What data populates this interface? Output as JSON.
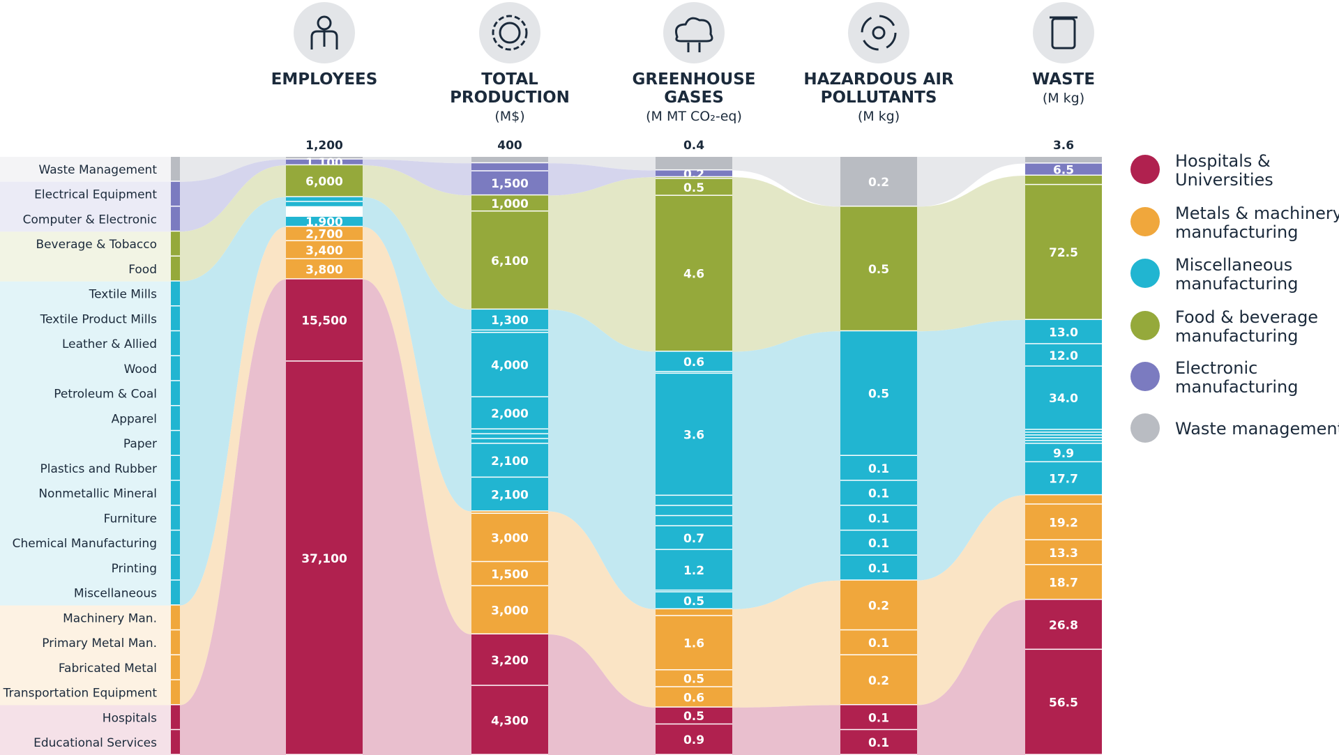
{
  "chart_data": {
    "type": "alluvial-stacked-bar",
    "categories": [
      {
        "name": "Waste Management",
        "group": "waste"
      },
      {
        "name": "Electrical Equipment",
        "group": "electronic"
      },
      {
        "name": "Computer & Electronic",
        "group": "electronic"
      },
      {
        "name": "Beverage & Tobacco",
        "group": "food"
      },
      {
        "name": "Food",
        "group": "food"
      },
      {
        "name": "Textile Mills",
        "group": "misc"
      },
      {
        "name": "Textile Product Mills",
        "group": "misc"
      },
      {
        "name": "Leather & Allied",
        "group": "misc"
      },
      {
        "name": "Wood",
        "group": "misc"
      },
      {
        "name": "Petroleum & Coal",
        "group": "misc"
      },
      {
        "name": "Apparel",
        "group": "misc"
      },
      {
        "name": "Paper",
        "group": "misc"
      },
      {
        "name": "Plastics and Rubber",
        "group": "misc"
      },
      {
        "name": "Nonmetallic Mineral",
        "group": "misc"
      },
      {
        "name": "Furniture",
        "group": "misc"
      },
      {
        "name": "Chemical Manufacturing",
        "group": "misc"
      },
      {
        "name": "Printing",
        "group": "misc"
      },
      {
        "name": "Miscellaneous",
        "group": "misc"
      },
      {
        "name": "Machinery Man.",
        "group": "metals"
      },
      {
        "name": "Primary Metal Man.",
        "group": "metals"
      },
      {
        "name": "Fabricated Metal",
        "group": "metals"
      },
      {
        "name": "Transportation Equipment",
        "group": "metals"
      },
      {
        "name": "Hospitals",
        "group": "hospitals"
      },
      {
        "name": "Educational Services",
        "group": "hospitals"
      }
    ],
    "groups": [
      {
        "key": "hospitals",
        "label": "Hospitals & Universities",
        "lines": [
          "Hospitals &",
          "Universities"
        ],
        "color": "#b0214f",
        "light": "#e8bccb"
      },
      {
        "key": "metals",
        "label": "Metals & machinery manufacturing",
        "lines": [
          "Metals & machinery",
          "manufacturing"
        ],
        "color": "#f0a73c",
        "light": "#fae3c2"
      },
      {
        "key": "misc",
        "label": "Miscellaneous manufacturing",
        "lines": [
          "Miscellaneous",
          "manufacturing"
        ],
        "color": "#21b5d1",
        "light": "#bfe7f0"
      },
      {
        "key": "food",
        "label": "Food & beverage manufacturing",
        "lines": [
          "Food & beverage",
          "manufacturing"
        ],
        "color": "#95a93b",
        "light": "#e2e6c3"
      },
      {
        "key": "electronic",
        "label": "Electronic manufacturing",
        "lines": [
          "Electronic",
          "manufacturing"
        ],
        "color": "#7b7bc0",
        "light": "#d3d3ec"
      },
      {
        "key": "waste",
        "label": "Waste management",
        "lines": [
          "Waste management"
        ],
        "color": "#b9bcc2",
        "light": "#e6e7ea"
      }
    ],
    "columns": [
      {
        "key": "employees",
        "title": [
          "EMPLOYEES"
        ],
        "unit": "",
        "total_label": "1,200",
        "icon": "person-icon",
        "values": [
          500,
          1100,
          6000,
          900,
          1000,
          150,
          150,
          150,
          150,
          150,
          150,
          150,
          150,
          150,
          150,
          150,
          150,
          1900,
          2700,
          3400,
          3800,
          15500,
          37100,
          37100
        ],
        "labels": [
          "",
          "1,100",
          "6,000",
          "",
          "",
          "",
          "",
          "",
          "",
          "",
          "",
          "",
          "",
          "",
          "",
          "",
          "",
          "1,900",
          "2,700",
          "3,400",
          "3,800",
          "15,500",
          "37,100",
          ""
        ],
        "merge_last_two": true
      },
      {
        "key": "production",
        "title": [
          "TOTAL",
          "PRODUCTION"
        ],
        "unit": "(M$)",
        "total_label": "400",
        "icon": "gear-icon",
        "values": [
          400,
          500,
          1500,
          1000,
          6100,
          1300,
          150,
          4000,
          2000,
          300,
          300,
          300,
          2100,
          2100,
          150,
          3000,
          1500,
          3000,
          3200,
          4300
        ],
        "labels": [
          "",
          "",
          "1,500",
          "1,000",
          "6,100",
          "1,300",
          "",
          "4,000",
          "2,000",
          "",
          "",
          "",
          "2,100",
          "2,100",
          "",
          "3,000",
          "1,500",
          "3,000",
          "3,200",
          "4,300"
        ]
      },
      {
        "key": "ghg",
        "title": [
          "GREENHOUSE",
          "GASES"
        ],
        "unit": "(M MT CO₂-eq)",
        "total_label": "0.4",
        "icon": "co2-cloud-icon",
        "values": [
          0.4,
          0.2,
          0.05,
          0.5,
          4.6,
          0.6,
          0.05,
          3.6,
          0.3,
          0.3,
          0.3,
          0.7,
          1.2,
          0.05,
          0.5,
          0.2,
          1.6,
          0.5,
          0.6,
          0.5,
          0.9
        ],
        "labels": [
          "",
          "0.2",
          "",
          "0.5",
          "4.6",
          "0.6",
          "",
          "3.6",
          "",
          "",
          "",
          "0.7",
          "1.2",
          "",
          "0.5",
          "",
          "1.6",
          "0.5",
          "0.6",
          "0.5",
          "0.9"
        ]
      },
      {
        "key": "hap",
        "title": [
          "HAZARDOUS AIR",
          "POLLUTANTS"
        ],
        "unit": "(M kg)",
        "total_label": "",
        "icon": "hazard-icon",
        "values": [
          0.2,
          0.5,
          0.5,
          0.1,
          0.1,
          0.1,
          0.1,
          0.1,
          0.2,
          0.1,
          0.2,
          0.1,
          0.1
        ],
        "labels": [
          "0.2",
          "0.5",
          "0.5",
          "0.1",
          "0.1",
          "0.1",
          "0.1",
          "0.1",
          "0.2",
          "0.1",
          "0.2",
          "0.1",
          "0.1"
        ]
      },
      {
        "key": "waste",
        "title": [
          "WASTE"
        ],
        "unit": "(M kg)",
        "total_label": "3.6",
        "icon": "trash-bin-icon",
        "values": [
          3.6,
          6.5,
          5,
          72.5,
          13.0,
          12.0,
          34.0,
          1.5,
          1.5,
          1.5,
          1.5,
          1.5,
          9.9,
          17.7,
          5,
          19.2,
          13.3,
          18.7,
          26.8,
          56.5
        ],
        "labels": [
          "",
          "6.5",
          "",
          "72.5",
          "13.0",
          "12.0",
          "34.0",
          "",
          "",
          "",
          "",
          "",
          "9.9",
          "17.7",
          "",
          "19.2",
          "13.3",
          "18.7",
          "26.8",
          "56.5"
        ]
      }
    ]
  }
}
